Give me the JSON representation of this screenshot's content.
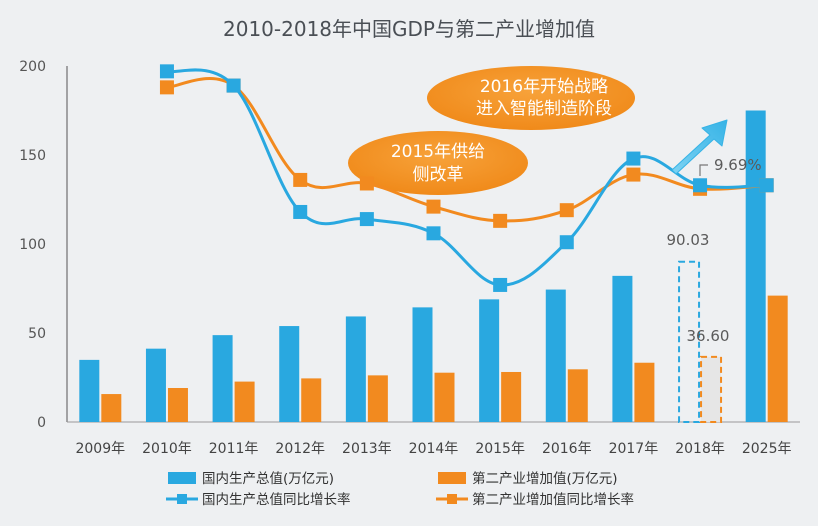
{
  "chart_data": {
    "type": "bar",
    "title": "2010-2018年中国GDP与第二产业增加值",
    "categories": [
      "2009年",
      "2010年",
      "2011年",
      "2012年",
      "2013年",
      "2014年",
      "2015年",
      "2016年",
      "2017年",
      "2018年",
      "2025年"
    ],
    "ylim": [
      0,
      200
    ],
    "yticks": [
      0,
      50,
      100,
      150,
      200
    ],
    "series": [
      {
        "name": "国内生产总值(万亿元)",
        "kind": "bar",
        "color": "#29a8e0",
        "values": [
          34.9,
          41.2,
          48.8,
          53.9,
          59.3,
          64.4,
          68.9,
          74.4,
          82.1,
          90.03,
          175
        ]
      },
      {
        "name": "第二产业增加值(万亿元)",
        "kind": "bar",
        "color": "#f28a1f",
        "values": [
          15.7,
          19.1,
          22.7,
          24.5,
          26.2,
          27.7,
          28.1,
          29.6,
          33.3,
          36.6,
          71
        ]
      },
      {
        "name": "国内生产总值同比增长率",
        "kind": "line",
        "color": "#29a8e0",
        "values": [
          null,
          197,
          189,
          118,
          114,
          106,
          77,
          101,
          148,
          133,
          133
        ]
      },
      {
        "name": "第二产业增加值同比增长率",
        "kind": "line",
        "color": "#f28a1f",
        "values": [
          null,
          188,
          189,
          136,
          134,
          121,
          113,
          119,
          139,
          131,
          133
        ]
      }
    ],
    "grid": false,
    "legend_position": "bottom"
  },
  "annotations": {
    "bubble_2016": {
      "line1": "2016年开始战略",
      "line2": "进入智能制造阶段"
    },
    "bubble_2015": {
      "line1": "2015年供给",
      "line2": "侧改革"
    },
    "label_gdp_2018": "90.03",
    "label_ind_2018": "36.60",
    "label_growth": "9.69%"
  },
  "colors": {
    "gdp": "#29a8e0",
    "industry": "#f28a1f",
    "forecast_fill": "#e6e6e6",
    "arrow": "#4fc1e9"
  }
}
